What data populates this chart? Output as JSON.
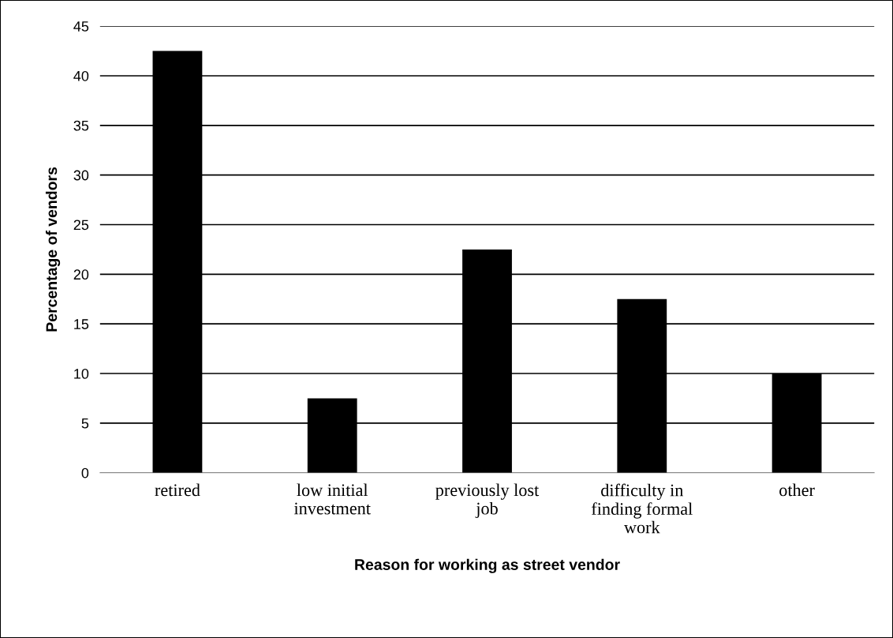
{
  "chart_data": {
    "type": "bar",
    "xlabel": "Reason for working as street vendor",
    "ylabel": "Percentage of vendors",
    "categories": [
      "retired",
      "low initial\ninvestment",
      "previously lost\njob",
      "difficulty in\nfinding formal\nwork",
      "other"
    ],
    "values": [
      42.5,
      7.5,
      22.5,
      17.5,
      10
    ],
    "color": "#000000",
    "ylim": [
      0,
      45
    ],
    "yticks": [
      0,
      5,
      10,
      15,
      20,
      25,
      30,
      35,
      40,
      45
    ],
    "grid": "y"
  }
}
